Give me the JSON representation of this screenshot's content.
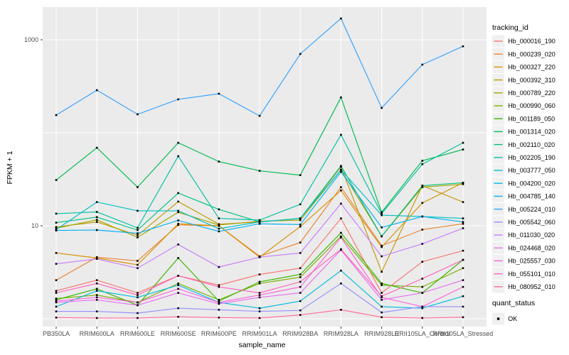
{
  "figure": {
    "background": "#FFFFFF",
    "panel_background": "#EBEBEB",
    "grid_color": "#FFFFFF",
    "tick_color": "#333333",
    "tick_label_color": "#4D4D4D",
    "point_color": "#000000",
    "legend_key_background": "#F0F0F0"
  },
  "axes": {
    "y_title": "FPKM + 1",
    "x_title": "sample_name",
    "y_tick_labels": [
      "1000",
      "10"
    ],
    "y_tick_values": [
      1000,
      10
    ]
  },
  "legend": {
    "tracking_title": "tracking_id",
    "quant_title": "quant_status",
    "quant_ok_label": "OK"
  },
  "chart_data": {
    "type": "line",
    "title": "",
    "xlabel": "sample_name",
    "ylabel": "FPKM + 1",
    "y_scale": "log10",
    "ylim": [
      0.85,
      2200
    ],
    "y_labeled_breaks": [
      10,
      1000
    ],
    "y_gridline_values": [
      1,
      10,
      100,
      1000
    ],
    "grid": true,
    "legend_position": "right",
    "point_marker": "small black square (quant_status = OK)",
    "categories": [
      "PB350LA",
      "RRIM600LA",
      "RRIM600LE",
      "RRIM600SE",
      "RRIM600PE",
      "RRIM901LA",
      "RRIM928BA",
      "RRIM928LA",
      "RRIM928LE",
      "RRII105LA_Control",
      "RRII105LA_Stressed"
    ],
    "series": [
      {
        "name": "Hb_000016_190",
        "color": "#F8766D",
        "values": [
          2.0,
          2.6,
          1.9,
          2.9,
          2.3,
          3.0,
          3.5,
          12,
          1.9,
          4.1,
          5.4
        ]
      },
      {
        "name": "Hb_000239_020",
        "color": "#EA8331",
        "values": [
          2.6,
          4.6,
          4.2,
          10.2,
          10.0,
          4.7,
          6.6,
          26,
          6.1,
          9.1,
          10.5
        ]
      },
      {
        "name": "Hb_000327_220",
        "color": "#D89000",
        "values": [
          5.1,
          4.5,
          3.8,
          10.5,
          10.0,
          4.6,
          9.8,
          24,
          5.9,
          17.6,
          29
        ]
      },
      {
        "name": "Hb_000392_310",
        "color": "#C09B00",
        "values": [
          9.7,
          11.0,
          7.9,
          18.2,
          10.4,
          11.0,
          12.0,
          43,
          3.2,
          27,
          18
        ]
      },
      {
        "name": "Hb_000789_220",
        "color": "#A3A500",
        "values": [
          9.4,
          11.6,
          7.5,
          14.0,
          10.2,
          11.2,
          11.5,
          40,
          7.7,
          26,
          28
        ]
      },
      {
        "name": "Hb_000990_060",
        "color": "#7CAE00",
        "values": [
          1.65,
          1.8,
          1.5,
          2.4,
          1.6,
          2.4,
          2.8,
          7.7,
          2.3,
          2.2,
          3.5
        ]
      },
      {
        "name": "Hb_001189_050",
        "color": "#39B600",
        "values": [
          1.6,
          2.1,
          1.4,
          4.5,
          1.55,
          2.5,
          3.0,
          8.4,
          2.4,
          1.9,
          4.3
        ]
      },
      {
        "name": "Hb_001314_020",
        "color": "#00BB4E",
        "values": [
          31,
          69,
          26,
          78,
          49,
          39,
          35,
          240,
          14,
          50,
          66
        ]
      },
      {
        "name": "Hb_002110_020",
        "color": "#00BF7D",
        "values": [
          10.8,
          12.4,
          9.0,
          22.5,
          15,
          11,
          12,
          44,
          7.7,
          27,
          29
        ]
      },
      {
        "name": "Hb_002205_190",
        "color": "#00C1A3",
        "values": [
          13.5,
          14.1,
          9.5,
          56,
          12,
          11.5,
          17,
          95,
          13.5,
          46,
          78
        ]
      },
      {
        "name": "Hb_003777_050",
        "color": "#00BFC4",
        "values": [
          9.1,
          18,
          14.5,
          14.5,
          9.3,
          11,
          12,
          40,
          13,
          12.6,
          12
        ]
      },
      {
        "name": "Hb_004200_020",
        "color": "#00BAE0",
        "values": [
          1.35,
          2.0,
          1.7,
          2.3,
          1.5,
          1.3,
          1.55,
          3.3,
          1.35,
          1.3,
          1.75
        ]
      },
      {
        "name": "Hb_004785_140",
        "color": "#00B0F6",
        "values": [
          8.9,
          9.0,
          8.3,
          11.4,
          8.7,
          10.5,
          10.3,
          38,
          9.6,
          12.6,
          11
        ]
      },
      {
        "name": "Hb_005224_010",
        "color": "#35A2FF",
        "values": [
          155,
          287,
          158,
          229,
          263,
          152,
          703,
          1695,
          185,
          541,
          851
        ]
      },
      {
        "name": "Hb_005542_060",
        "color": "#9590FF",
        "values": [
          1.2,
          1.2,
          1.15,
          1.3,
          1.25,
          1.2,
          1.23,
          2.4,
          1.17,
          1.35,
          1.35
        ]
      },
      {
        "name": "Hb_011030_020",
        "color": "#C77CFF",
        "values": [
          3.9,
          4.4,
          3.5,
          6.3,
          3.6,
          4.6,
          5.1,
          17.3,
          4.7,
          6.4,
          9.4
        ]
      },
      {
        "name": "Hb_024468_020",
        "color": "#E76BF3",
        "values": [
          1.5,
          1.6,
          1.4,
          1.9,
          1.45,
          1.7,
          1.9,
          5.5,
          1.6,
          1.9,
          2.6
        ]
      },
      {
        "name": "Hb_025557_030",
        "color": "#FA62DB",
        "values": [
          1.55,
          1.7,
          1.5,
          2.1,
          1.5,
          1.8,
          2.2,
          7.5,
          1.7,
          1.35,
          2.2
        ]
      },
      {
        "name": "Hb_055101_010",
        "color": "#FF62BC",
        "values": [
          1.9,
          2.4,
          1.8,
          2.9,
          2.2,
          1.9,
          2.5,
          5.6,
          1.75,
          2.7,
          4.3
        ]
      },
      {
        "name": "Hb_080952_010",
        "color": "#FF6A98",
        "values": [
          1.03,
          1.02,
          1.02,
          1.05,
          1.03,
          1.02,
          1.1,
          1.25,
          1.04,
          1.02,
          1.04
        ]
      }
    ]
  }
}
